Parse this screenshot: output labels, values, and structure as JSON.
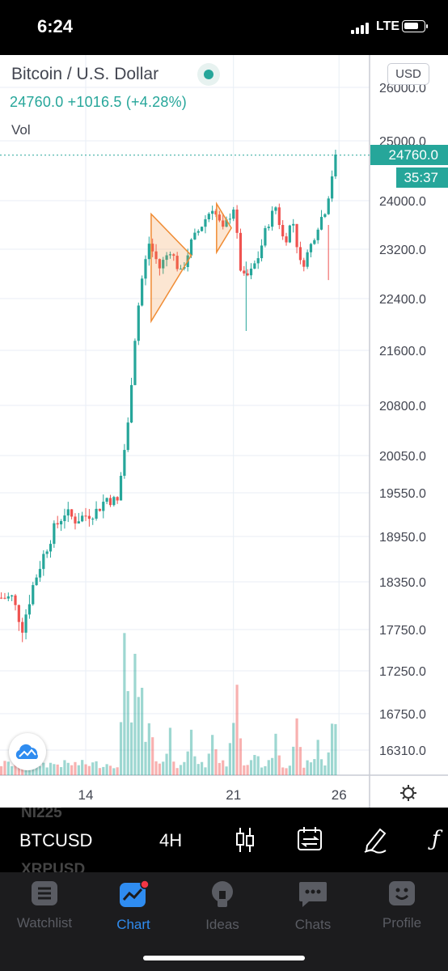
{
  "status_bar": {
    "time": "6:24",
    "network": "LTE"
  },
  "chart": {
    "symbol_title": "Bitcoin / U.S. Dollar",
    "last_price": "24760.0",
    "change": "+1016.5",
    "change_percent": "(+4.28%)",
    "volume_label": "Vol",
    "currency_button": "USD",
    "price_tag": "24760.0",
    "countdown": "35:37",
    "colors": {
      "up": "#26a69a",
      "down": "#ef5350",
      "pattern": "#f08c34"
    }
  },
  "chart_data": {
    "type": "candlestick",
    "title": "Bitcoin / U.S. Dollar",
    "timeframe": "4H",
    "y_ticks": [
      "26000.0",
      "25000.0",
      "24000.0",
      "23200.0",
      "22400.0",
      "21600.0",
      "20800.0",
      "20050.0",
      "19550.0",
      "18950.0",
      "18350.0",
      "17750.0",
      "17250.0",
      "16750.0",
      "16310.0"
    ],
    "y_tick_values": [
      26000,
      25000,
      24000,
      23200,
      22400,
      21600,
      20800,
      20050,
      19550,
      18950,
      18350,
      17750,
      17250,
      16750,
      16310
    ],
    "x_ticks": [
      "14",
      "21",
      "26"
    ],
    "x_tick_day": [
      14,
      21,
      26
    ],
    "last_value": 24760.0,
    "close_path": [
      [
        10.5,
        18150
      ],
      [
        11.0,
        17780
      ],
      [
        11.5,
        18300
      ],
      [
        12.0,
        18700
      ],
      [
        12.5,
        19050
      ],
      [
        13.0,
        19280
      ],
      [
        13.5,
        19180
      ],
      [
        14.0,
        19240
      ],
      [
        14.5,
        19300
      ],
      [
        15.0,
        19480
      ],
      [
        15.5,
        19420
      ],
      [
        16.0,
        20500
      ],
      [
        16.3,
        21700
      ],
      [
        16.6,
        22600
      ],
      [
        17.0,
        23300
      ],
      [
        17.5,
        22900
      ],
      [
        18.0,
        23200
      ],
      [
        18.5,
        22800
      ],
      [
        19.0,
        23300
      ],
      [
        19.5,
        23600
      ],
      [
        20.0,
        23900
      ],
      [
        20.5,
        23500
      ],
      [
        21.0,
        23900
      ],
      [
        21.4,
        22700
      ],
      [
        21.8,
        22800
      ],
      [
        22.2,
        23100
      ],
      [
        22.6,
        23600
      ],
      [
        23.0,
        23900
      ],
      [
        23.4,
        23300
      ],
      [
        23.8,
        23700
      ],
      [
        24.2,
        22900
      ],
      [
        24.6,
        23200
      ],
      [
        25.0,
        23600
      ],
      [
        25.4,
        23900
      ],
      [
        25.8,
        24700
      ]
    ],
    "volume_relative": [
      [
        15.9,
        0.95
      ],
      [
        16.1,
        0.55
      ],
      [
        16.3,
        0.9
      ],
      [
        16.6,
        0.6
      ],
      [
        17.0,
        0.4
      ],
      [
        18.0,
        0.25
      ],
      [
        19.0,
        0.35
      ],
      [
        20.0,
        0.45
      ],
      [
        21.1,
        0.7
      ],
      [
        22.0,
        0.2
      ],
      [
        23.0,
        0.35
      ],
      [
        24.0,
        0.3
      ],
      [
        25.0,
        0.25
      ],
      [
        25.7,
        0.4
      ],
      [
        25.9,
        0.38
      ]
    ],
    "drawings": [
      {
        "type": "triangle",
        "color": "#f08c34",
        "points": [
          [
            17.1,
            23780
          ],
          [
            17.1,
            22050
          ],
          [
            19.0,
            23100
          ]
        ]
      },
      {
        "type": "triangle",
        "color": "#f08c34",
        "points": [
          [
            20.2,
            23950
          ],
          [
            20.2,
            23150
          ],
          [
            20.9,
            23550
          ]
        ]
      }
    ]
  },
  "toolbar": {
    "symbol_above": "NI225",
    "symbol": "BTCUSD",
    "symbol_below": "XRPUSD",
    "interval": "4H"
  },
  "tabs": [
    {
      "label": "Watchlist",
      "icon": "watchlist-icon",
      "active": false
    },
    {
      "label": "Chart",
      "icon": "chart-icon",
      "active": true
    },
    {
      "label": "Ideas",
      "icon": "ideas-lightbulb-icon",
      "active": false
    },
    {
      "label": "Chats",
      "icon": "chats-bubble-icon",
      "active": false
    },
    {
      "label": "Profile",
      "icon": "profile-icon",
      "active": false
    }
  ]
}
